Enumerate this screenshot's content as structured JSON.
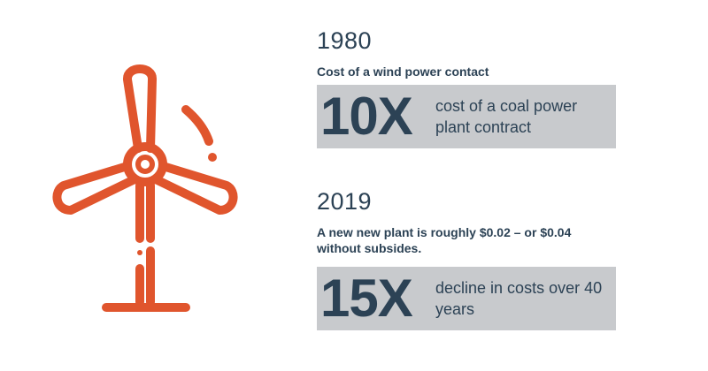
{
  "accent_color": "#e0552d",
  "text_color": "#2c4255",
  "box_color": "#c8cacd",
  "illustration": {
    "icon": "wind-turbine-icon"
  },
  "sections": [
    {
      "year": "1980",
      "caption": "Cost of a wind power contact",
      "stat": "10X",
      "stat_text": "cost of a coal power plant contract"
    },
    {
      "year": "2019",
      "caption": "A new new plant is roughly $0.02 – or $0.04 without subsides.",
      "stat": "15X",
      "stat_text": "decline in costs over 40 years"
    }
  ]
}
